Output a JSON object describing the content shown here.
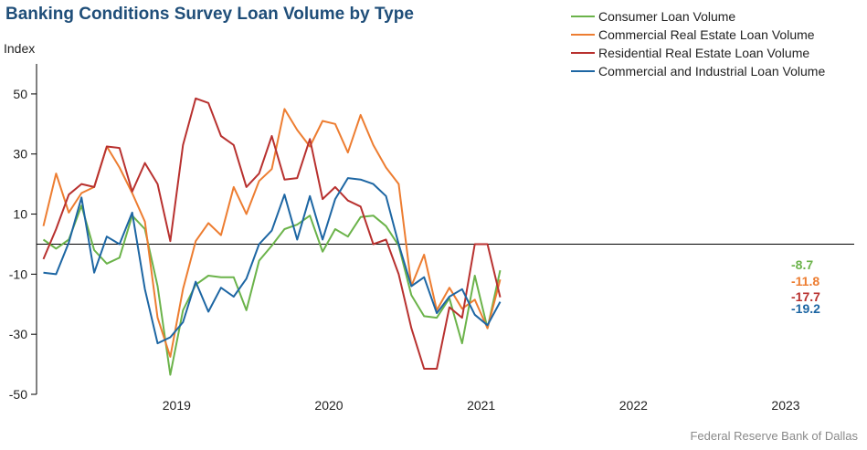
{
  "title": "Banking Conditions Survey Loan Volume by Type",
  "source": "Federal Reserve Bank of Dallas",
  "chart_data": {
    "type": "line",
    "ylabel": "Index",
    "ylim": [
      -50,
      60
    ],
    "yticks": [
      50,
      30,
      10,
      -10,
      -30,
      -50
    ],
    "zero_line": true,
    "grid": false,
    "legend_placement": "top-right",
    "x_start": 2018.625,
    "x_step": 0.0833333,
    "x_range": [
      2018.58,
      2023.95
    ],
    "year_labels": [
      2019,
      2020,
      2021,
      2022,
      2023
    ],
    "series": [
      {
        "name": "Consumer Loan Volume",
        "color": "#6bb34a",
        "end_label": "-8.7",
        "values": [
          1.5,
          -1.5,
          1.5,
          12.8,
          -2,
          -6.5,
          -4.5,
          9.5,
          5,
          -14,
          -43.5,
          -22,
          -13.5,
          -10.5,
          -11,
          -11,
          -22,
          -5.5,
          -0.5,
          5,
          6.5,
          9.5,
          -2.5,
          5,
          2.5,
          9,
          9.5,
          6,
          -0.5,
          -17,
          -24,
          -24.5,
          -18,
          -33,
          -10.5,
          -28,
          -8.7
        ]
      },
      {
        "name": "Commercial Real Estate Loan Volume",
        "color": "#ed7d31",
        "end_label": "-11.8",
        "values": [
          6,
          23.5,
          10.5,
          17,
          19,
          32.5,
          25.5,
          17,
          7.5,
          -24.5,
          -37.5,
          -15,
          1,
          7,
          3,
          19,
          10,
          21,
          25,
          45,
          38,
          32.5,
          41,
          40,
          30.5,
          43,
          33,
          25.5,
          20,
          -14,
          -3.5,
          -22,
          -14.5,
          -21.5,
          -18.5,
          -28,
          -11.8
        ]
      },
      {
        "name": "Residential Real Estate Loan Volume",
        "color": "#b8312f",
        "end_label": "-17.7",
        "values": [
          -5,
          5,
          16.5,
          20,
          19,
          32.5,
          32,
          17.5,
          27,
          20,
          1,
          33,
          48.5,
          47,
          36,
          33,
          19,
          23.5,
          36,
          21.5,
          22,
          35,
          15,
          19,
          14.5,
          12.5,
          0,
          1.5,
          -10,
          -28,
          -41.5,
          -41.5,
          -21,
          -24.5,
          0,
          0,
          -17.7
        ]
      },
      {
        "name": "Commercial and Industrial Loan Volume",
        "color": "#1d66a3",
        "end_label": "-19.2",
        "values": [
          -9.5,
          -10,
          0.5,
          15.5,
          -9.5,
          2.5,
          0,
          10.5,
          -15,
          -33,
          -31,
          -26,
          -12.5,
          -22.5,
          -14.5,
          -17.5,
          -11.5,
          0,
          4.5,
          16.5,
          1.5,
          16,
          1.5,
          15,
          22,
          21.5,
          20,
          16,
          0,
          -14,
          -11,
          -23,
          -17.5,
          -15,
          -23.5,
          -27,
          -19.2
        ]
      }
    ]
  }
}
